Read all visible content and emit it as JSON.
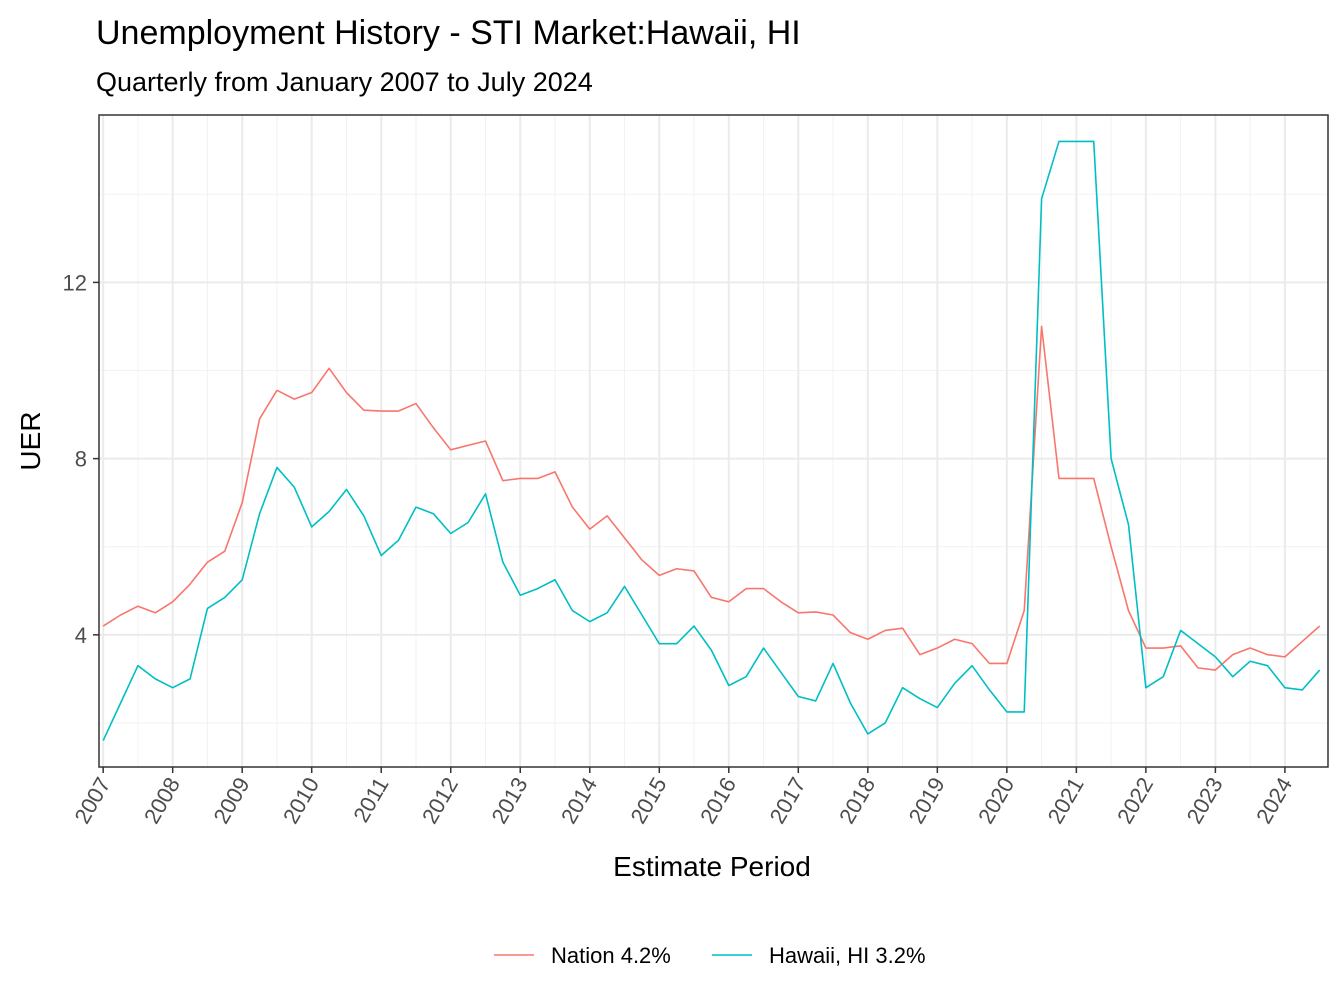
{
  "chart_data": {
    "type": "line",
    "title": "Unemployment History - STI Market:Hawaii, HI",
    "subtitle": "Quarterly from January 2007 to July 2024",
    "xlabel": "Estimate Period",
    "ylabel": "UER",
    "x_start": "2007-01",
    "x_step": "quarter",
    "xlim": [
      2006.94,
      2024.62
    ],
    "ylim": [
      1.0,
      15.8
    ],
    "x_ticks": [
      2007,
      2008,
      2009,
      2010,
      2011,
      2012,
      2013,
      2014,
      2015,
      2016,
      2017,
      2018,
      2019,
      2020,
      2021,
      2022,
      2023,
      2024
    ],
    "x_tick_labels": [
      "2007",
      "2008",
      "2009",
      "2010",
      "2011",
      "2012",
      "2013",
      "2014",
      "2015",
      "2016",
      "2017",
      "2018",
      "2019",
      "2020",
      "2021",
      "2022",
      "2023",
      "2024"
    ],
    "y_ticks": [
      4,
      8,
      12
    ],
    "y_tick_labels": [
      "4",
      "8",
      "12"
    ],
    "y_minor_ticks": [
      2,
      6,
      10,
      14
    ],
    "grid": true,
    "legend_position": "bottom",
    "series": [
      {
        "name": "Nation 4.2%",
        "color": "#F8766D",
        "values": [
          4.2,
          4.45,
          4.65,
          4.5,
          4.75,
          5.15,
          5.65,
          5.9,
          7.0,
          8.9,
          9.55,
          9.35,
          9.5,
          10.05,
          9.5,
          9.1,
          9.08,
          9.08,
          9.25,
          8.7,
          8.2,
          8.3,
          8.4,
          7.5,
          7.55,
          7.55,
          7.7,
          6.9,
          6.4,
          6.7,
          6.2,
          5.7,
          5.35,
          5.5,
          5.45,
          4.85,
          4.75,
          5.05,
          5.05,
          4.75,
          4.5,
          4.52,
          4.45,
          4.05,
          3.9,
          4.1,
          4.15,
          3.55,
          3.7,
          3.9,
          3.8,
          3.35,
          3.35,
          4.55,
          11.0,
          7.55,
          7.55,
          7.55,
          6.0,
          4.55,
          3.7,
          3.7,
          3.75,
          3.25,
          3.2,
          3.55,
          3.7,
          3.55,
          3.5,
          3.85,
          4.2
        ]
      },
      {
        "name": "Hawaii, HI 3.2%",
        "color": "#00BFC4",
        "values": [
          1.6,
          2.45,
          3.3,
          3.0,
          2.8,
          3.0,
          4.6,
          4.85,
          5.25,
          6.75,
          7.8,
          7.35,
          6.45,
          6.8,
          7.3,
          6.7,
          5.8,
          6.15,
          6.9,
          6.75,
          6.3,
          6.55,
          7.2,
          5.65,
          4.9,
          5.05,
          5.25,
          4.55,
          4.3,
          4.5,
          5.1,
          4.45,
          3.8,
          3.8,
          4.2,
          3.65,
          2.85,
          3.05,
          3.7,
          3.15,
          2.6,
          2.5,
          3.35,
          2.45,
          1.75,
          2.0,
          2.8,
          2.55,
          2.35,
          2.9,
          3.3,
          2.75,
          2.25,
          2.25,
          13.9,
          15.2,
          15.2,
          15.2,
          8.0,
          6.5,
          2.8,
          3.05,
          4.1,
          3.8,
          3.5,
          3.05,
          3.4,
          3.3,
          2.8,
          2.75,
          3.2
        ]
      }
    ]
  }
}
